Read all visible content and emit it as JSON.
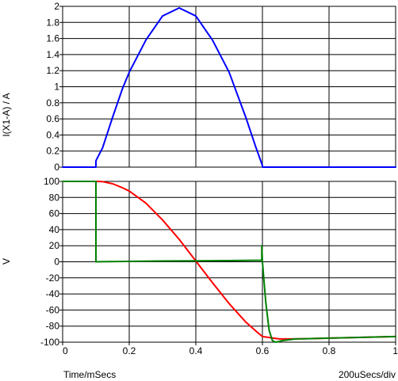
{
  "chart_data": [
    {
      "type": "line",
      "ylabel": "I(X1-A) / A",
      "xlim": [
        0,
        1
      ],
      "ylim": [
        0,
        2
      ],
      "xticks": [
        "0",
        "0.2",
        "0.4",
        "0.6",
        "0.8",
        "1"
      ],
      "yticks": [
        "0",
        "0.2",
        "0.4",
        "0.6",
        "0.8",
        "1",
        "1.2",
        "1.4",
        "1.6",
        "1.8",
        "2"
      ],
      "grid": true,
      "series": [
        {
          "color": "#0000ff",
          "x": [
            0,
            0.1,
            0.1,
            0.12,
            0.15,
            0.18,
            0.2,
            0.25,
            0.3,
            0.35,
            0.4,
            0.45,
            0.5,
            0.55,
            0.58,
            0.6,
            0.6,
            0.7,
            0.8,
            1.0
          ],
          "y": [
            0,
            0,
            0.08,
            0.24,
            0.62,
            0.98,
            1.18,
            1.58,
            1.88,
            1.98,
            1.88,
            1.58,
            1.18,
            0.62,
            0.25,
            0.02,
            0,
            0,
            0,
            0
          ]
        }
      ]
    },
    {
      "type": "line",
      "ylabel": "V",
      "xlabel": "Time/mSecs",
      "xlim": [
        0,
        1
      ],
      "ylim": [
        -100,
        100
      ],
      "xticks": [
        "0",
        "0.2",
        "0.4",
        "0.6",
        "0.8",
        "1"
      ],
      "yticks": [
        "-100",
        "-80",
        "-60",
        "-40",
        "-20",
        "0",
        "20",
        "40",
        "60",
        "80",
        "100"
      ],
      "grid": true,
      "series": [
        {
          "color": "#ff0000",
          "x": [
            0,
            0.1,
            0.12,
            0.15,
            0.18,
            0.2,
            0.25,
            0.3,
            0.35,
            0.4,
            0.45,
            0.5,
            0.55,
            0.58,
            0.6,
            0.65,
            0.7,
            0.8,
            0.9,
            1.0
          ],
          "y": [
            100,
            100,
            99.7,
            97,
            92,
            88,
            73,
            52,
            28,
            1,
            -26,
            -52,
            -75,
            -86,
            -93,
            -96,
            -96,
            -95,
            -94,
            -93
          ]
        },
        {
          "color": "#008000",
          "x": [
            0,
            0.1,
            0.1,
            0.3,
            0.5,
            0.598,
            0.598,
            0.6,
            0.61,
            0.62,
            0.63,
            0.64,
            0.66,
            0.7,
            0.8,
            0.9,
            1.0
          ],
          "y": [
            100,
            100,
            0,
            1,
            1.5,
            2,
            20,
            0,
            -50,
            -85,
            -98,
            -100,
            -98,
            -96,
            -95,
            -94,
            -93
          ]
        }
      ]
    }
  ],
  "footer": {
    "time_label": "Time/mSecs",
    "scale_label": "200uSecs/div"
  }
}
